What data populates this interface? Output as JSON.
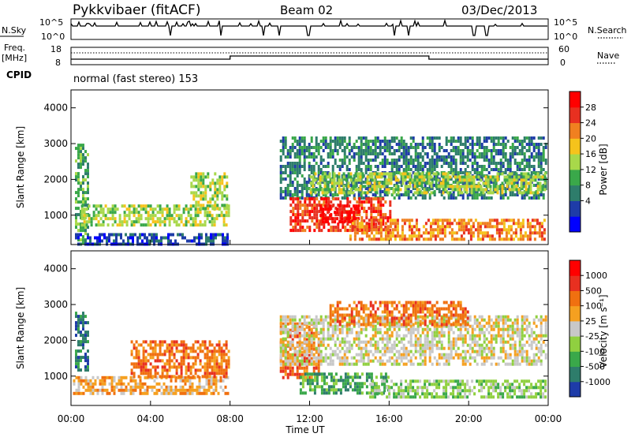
{
  "header": {
    "title": "Pykkvibaer (fitACF)",
    "beam": "Beam 02",
    "date": "03/Dec/2013"
  },
  "status_panels": {
    "nsky_label": "N.Sky",
    "nsky_ticks": [
      "10^5",
      "10^0"
    ],
    "nsearch_label": "N.Search",
    "nsearch_ticks": [
      "10^5",
      "10^0"
    ],
    "freq_label": "Freq.",
    "freq_unit": "[MHz]",
    "freq_ticks": [
      "18",
      "8"
    ],
    "nave_label": "Nave",
    "nave_ticks": [
      "60",
      "0"
    ],
    "cpid_label": "CPID",
    "cpid_text": "normal (fast stereo) 153"
  },
  "chart_data": [
    {
      "type": "heatmap",
      "name": "power",
      "ylabel": "Slant Range [km]",
      "yticks": [
        "4000",
        "3000",
        "2000",
        "1000"
      ],
      "ylim": [
        180,
        4500
      ],
      "xlim": [
        0,
        24
      ],
      "colorbar_label": "Power [dB]",
      "colorbar_ticks": [
        "28",
        "24",
        "20",
        "16",
        "12",
        "8",
        "4"
      ],
      "colors": [
        "#0000ff",
        "#1e3ca8",
        "#2e7d6b",
        "#3aa84a",
        "#a8d84a",
        "#f5c31c",
        "#f08020",
        "#e83020",
        "#ff0000"
      ],
      "regions": [
        {
          "t": [
            0.2,
            0.8
          ],
          "r": [
            200,
            3000
          ],
          "level": 3
        },
        {
          "t": [
            0.2,
            7.9
          ],
          "r": [
            200,
            500
          ],
          "level": 1
        },
        {
          "t": [
            0.5,
            7.9
          ],
          "r": [
            700,
            1300
          ],
          "level": 4
        },
        {
          "t": [
            6.0,
            7.9
          ],
          "r": [
            1200,
            2200
          ],
          "level": 4
        },
        {
          "t": [
            10.5,
            23.9
          ],
          "r": [
            1500,
            3200
          ],
          "level": 2
        },
        {
          "t": [
            11.0,
            16.0
          ],
          "r": [
            600,
            1500
          ],
          "level": 7
        },
        {
          "t": [
            12.5,
            14.5
          ],
          "r": [
            800,
            1300
          ],
          "level": 8
        },
        {
          "t": [
            14.0,
            23.8
          ],
          "r": [
            300,
            900
          ],
          "level": 6
        },
        {
          "t": [
            12.0,
            23.9
          ],
          "r": [
            1600,
            2200
          ],
          "level": 4
        }
      ]
    },
    {
      "type": "heatmap",
      "name": "velocity",
      "xlabel": "Time UT",
      "ylabel": "Slant Range [km]",
      "yticks": [
        "4000",
        "3000",
        "2000",
        "1000"
      ],
      "xticks": [
        "00:00",
        "04:00",
        "08:00",
        "12:00",
        "16:00",
        "20:00",
        "00:00"
      ],
      "ylim": [
        180,
        4500
      ],
      "xlim": [
        0,
        24
      ],
      "colorbar_label": "Velocity [m s⁻¹]",
      "colorbar_ticks": [
        "1000",
        "500",
        "100",
        "25",
        "-25",
        "-100",
        "-500",
        "-1000"
      ],
      "colors": [
        "#1e3ca8",
        "#2e7d6b",
        "#3aa84a",
        "#90d040",
        "#c8c8c8",
        "#f5a020",
        "#f07010",
        "#e83020",
        "#ff0000"
      ],
      "regions": [
        {
          "t": [
            0.2,
            0.8
          ],
          "r": [
            1200,
            2800
          ],
          "level": 1
        },
        {
          "t": [
            0.1,
            7.9
          ],
          "r": [
            500,
            1000
          ],
          "level": 5
        },
        {
          "t": [
            3.0,
            7.9
          ],
          "r": [
            1000,
            2000
          ],
          "level": 6
        },
        {
          "t": [
            10.5,
            12.5
          ],
          "r": [
            1000,
            2500
          ],
          "level": 6
        },
        {
          "t": [
            10.5,
            23.9
          ],
          "r": [
            1300,
            2700
          ],
          "level": 4
        },
        {
          "t": [
            11.5,
            16.0
          ],
          "r": [
            500,
            1100
          ],
          "level": 2
        },
        {
          "t": [
            15.0,
            23.9
          ],
          "r": [
            400,
            900
          ],
          "level": 3
        },
        {
          "t": [
            13.0,
            20.0
          ],
          "r": [
            2400,
            3100
          ],
          "level": 6
        }
      ]
    }
  ]
}
